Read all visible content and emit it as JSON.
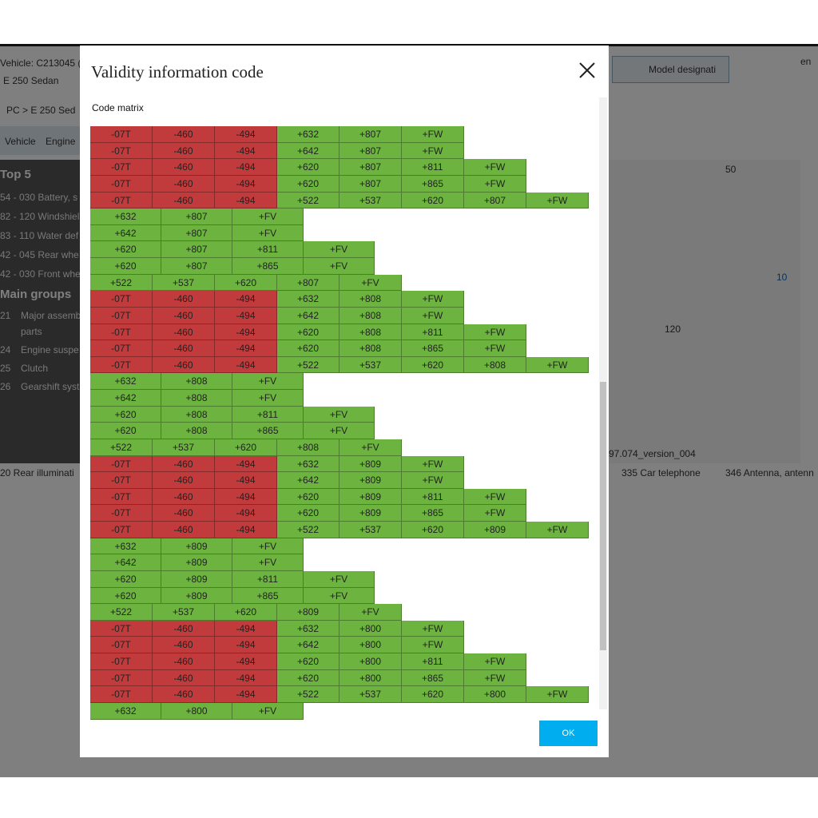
{
  "background": {
    "vehicle": "Vehicle: C213045 (C",
    "model": "E 250 Sedan",
    "breadcrumb": "PC  >  E 250 Sed",
    "tabs": [
      "Vehicle",
      "Engine"
    ],
    "search": "Model designati",
    "language": "en",
    "top5_title": "Top 5",
    "top5": [
      "54 - 030 Battery, s",
      "82 - 120 Windshiel",
      "83 - 110 Water def",
      "42 - 045 Rear whe",
      "42 - 030 Front whe"
    ],
    "main_groups_title": "Main groups",
    "main_groups": [
      [
        "21",
        "Major assemb",
        "parts"
      ],
      [
        "24",
        "Engine suspe",
        null
      ],
      [
        "25",
        "Clutch",
        null
      ],
      [
        "26",
        "Gearshift syst",
        null
      ]
    ],
    "callouts": [
      "50",
      "10",
      "120"
    ],
    "version": "97.074_version_004",
    "thumbnails": [
      "20 Rear illuminati",
      "335 Car telephone",
      "346 Antenna, antenn"
    ]
  },
  "dialog": {
    "title": "Validity information code",
    "section": "Code matrix",
    "button": "OK",
    "rows": [
      [
        "-07T",
        "-460",
        "-494",
        "+632",
        "+807",
        "+FW"
      ],
      [
        "-07T",
        "-460",
        "-494",
        "+642",
        "+807",
        "+FW"
      ],
      [
        "-07T",
        "-460",
        "-494",
        "+620",
        "+807",
        "+811",
        "+FW"
      ],
      [
        "-07T",
        "-460",
        "-494",
        "+620",
        "+807",
        "+865",
        "+FW"
      ],
      [
        "-07T",
        "-460",
        "-494",
        "+522",
        "+537",
        "+620",
        "+807",
        "+FW"
      ],
      [
        "+632",
        "+807",
        "+FV"
      ],
      [
        "+642",
        "+807",
        "+FV"
      ],
      [
        "+620",
        "+807",
        "+811",
        "+FV"
      ],
      [
        "+620",
        "+807",
        "+865",
        "+FV"
      ],
      [
        "+522",
        "+537",
        "+620",
        "+807",
        "+FV"
      ],
      [
        "-07T",
        "-460",
        "-494",
        "+632",
        "+808",
        "+FW"
      ],
      [
        "-07T",
        "-460",
        "-494",
        "+642",
        "+808",
        "+FW"
      ],
      [
        "-07T",
        "-460",
        "-494",
        "+620",
        "+808",
        "+811",
        "+FW"
      ],
      [
        "-07T",
        "-460",
        "-494",
        "+620",
        "+808",
        "+865",
        "+FW"
      ],
      [
        "-07T",
        "-460",
        "-494",
        "+522",
        "+537",
        "+620",
        "+808",
        "+FW"
      ],
      [
        "+632",
        "+808",
        "+FV"
      ],
      [
        "+642",
        "+808",
        "+FV"
      ],
      [
        "+620",
        "+808",
        "+811",
        "+FV"
      ],
      [
        "+620",
        "+808",
        "+865",
        "+FV"
      ],
      [
        "+522",
        "+537",
        "+620",
        "+808",
        "+FV"
      ],
      [
        "-07T",
        "-460",
        "-494",
        "+632",
        "+809",
        "+FW"
      ],
      [
        "-07T",
        "-460",
        "-494",
        "+642",
        "+809",
        "+FW"
      ],
      [
        "-07T",
        "-460",
        "-494",
        "+620",
        "+809",
        "+811",
        "+FW"
      ],
      [
        "-07T",
        "-460",
        "-494",
        "+620",
        "+809",
        "+865",
        "+FW"
      ],
      [
        "-07T",
        "-460",
        "-494",
        "+522",
        "+537",
        "+620",
        "+809",
        "+FW"
      ],
      [
        "+632",
        "+809",
        "+FV"
      ],
      [
        "+642",
        "+809",
        "+FV"
      ],
      [
        "+620",
        "+809",
        "+811",
        "+FV"
      ],
      [
        "+620",
        "+809",
        "+865",
        "+FV"
      ],
      [
        "+522",
        "+537",
        "+620",
        "+809",
        "+FV"
      ],
      [
        "-07T",
        "-460",
        "-494",
        "+632",
        "+800",
        "+FW"
      ],
      [
        "-07T",
        "-460",
        "-494",
        "+642",
        "+800",
        "+FW"
      ],
      [
        "-07T",
        "-460",
        "-494",
        "+620",
        "+800",
        "+811",
        "+FW"
      ],
      [
        "-07T",
        "-460",
        "-494",
        "+620",
        "+800",
        "+865",
        "+FW"
      ],
      [
        "-07T",
        "-460",
        "-494",
        "+522",
        "+537",
        "+620",
        "+800",
        "+FW"
      ],
      [
        "+632",
        "+800",
        "+FV"
      ]
    ]
  }
}
